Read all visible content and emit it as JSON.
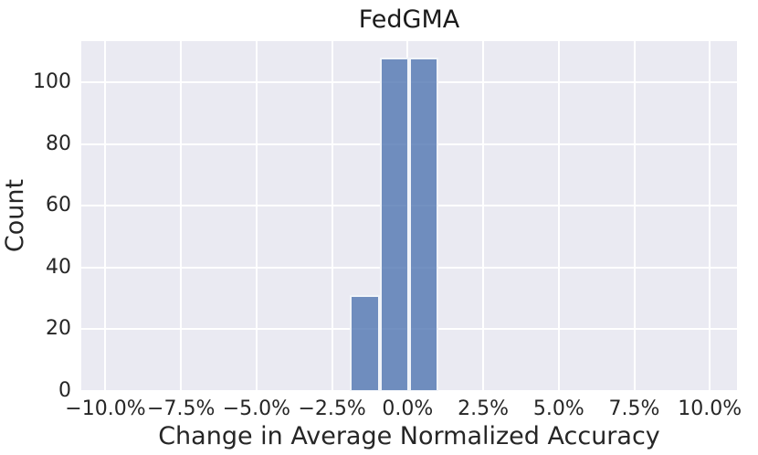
{
  "chart_data": {
    "type": "bar",
    "subtype": "histogram",
    "title": "FedGMA",
    "xlabel": "Change in Average Normalized Accuracy",
    "ylabel": "Count",
    "x_units": "percent",
    "bins": [
      {
        "x0_pct": -1.9,
        "x1_pct": -0.93,
        "count": 31
      },
      {
        "x0_pct": -0.93,
        "x1_pct": 0.04,
        "count": 108
      },
      {
        "x0_pct": 0.04,
        "x1_pct": 1.01,
        "count": 108
      }
    ],
    "xticks": [
      {
        "value": -10,
        "label": "−10.0%"
      },
      {
        "value": -7.5,
        "label": "−7.5%"
      },
      {
        "value": -5,
        "label": "−5.0%"
      },
      {
        "value": -2.5,
        "label": "−2.5%"
      },
      {
        "value": 0,
        "label": "0.0%"
      },
      {
        "value": 2.5,
        "label": "2.5%"
      },
      {
        "value": 5,
        "label": "5.0%"
      },
      {
        "value": 7.5,
        "label": "7.5%"
      },
      {
        "value": 10,
        "label": "10.0%"
      }
    ],
    "yticks": [
      {
        "value": 0,
        "label": "0"
      },
      {
        "value": 20,
        "label": "20"
      },
      {
        "value": 40,
        "label": "40"
      },
      {
        "value": 60,
        "label": "60"
      },
      {
        "value": 80,
        "label": "80"
      },
      {
        "value": 100,
        "label": "100"
      }
    ],
    "xlim_pct": [
      -10.8,
      10.9
    ],
    "ylim": [
      0,
      113.4
    ],
    "grid": true,
    "legend": false,
    "colors": {
      "plot_bg": "#EAEAF2",
      "grid": "#FFFFFF",
      "bar": "#4C72B0",
      "bar_alpha": 0.78,
      "bar_edge": "#FFFFFF",
      "text": "#262626"
    }
  }
}
